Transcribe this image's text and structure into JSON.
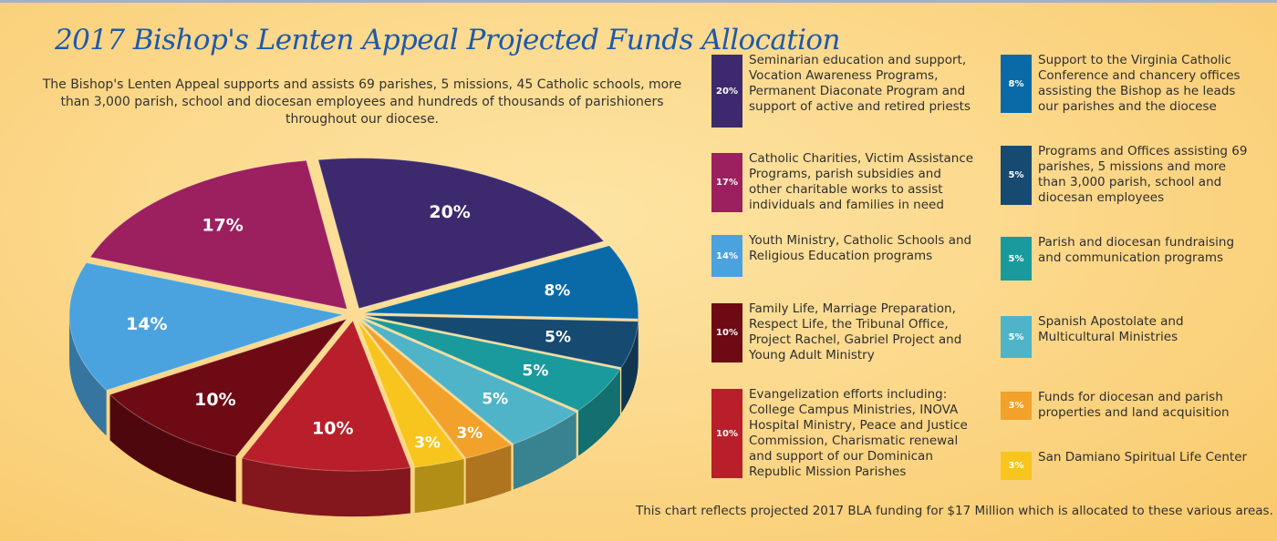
{
  "title": "2017 Bishop's Lenten Appeal Projected Funds Allocation",
  "intro": "The Bishop's Lenten Appeal supports and assists 69 parishes, 5 missions, 45 Catholic schools, more than 3,000 parish, school and diocesan employees and hundreds of thousands of parishioners throughout our diocese.",
  "footer": "This chart reflects projected 2017 BLA funding for $17 Million which is allocated to these various areas.",
  "chart_data": {
    "type": "pie",
    "title": "2017 Bishop's Lenten Appeal Projected Funds Allocation",
    "legend_position": "right",
    "slices": [
      {
        "label": "Seminarian education and support, Vocation Awareness Programs, Permanent Diaconate Program and support of active and retired priests",
        "value": 20,
        "display": "20%",
        "color": "#3d2a6e"
      },
      {
        "label": "Support to the Virginia Catholic Conference and chancery offices assisting the Bishop as he leads our parishes and the diocese",
        "value": 8,
        "display": "8%",
        "color": "#0a6aa8"
      },
      {
        "label": "Programs and Offices assisting 69 parishes, 5 missions and more than 3,000 parish, school and diocesan employees",
        "value": 5,
        "display": "5%",
        "color": "#164a70"
      },
      {
        "label": "Parish and diocesan fundraising and communication programs",
        "value": 5,
        "display": "5%",
        "color": "#1a9a9c"
      },
      {
        "label": "Spanish Apostolate and Multicultural Ministries",
        "value": 5,
        "display": "5%",
        "color": "#4fb4c8"
      },
      {
        "label": "Funds for diocesan and parish properties and land acquisition",
        "value": 3,
        "display": "3%",
        "color": "#f2a12a"
      },
      {
        "label": "San Damiano Spiritual Life Center",
        "value": 3,
        "display": "3%",
        "color": "#f7c51e"
      },
      {
        "label": "Evangelization efforts including: College Campus Ministries, INOVA Hospital Ministry, Peace and Justice Commission, Charismatic renewal and support of our Dominican Republic Mission Parishes",
        "value": 10,
        "display": "10%",
        "color": "#b81f2a"
      },
      {
        "label": "Family Life, Marriage Preparation, Respect Life, the Tribunal Office, Project Rachel, Gabriel Project and Young Adult Ministry",
        "value": 10,
        "display": "10%",
        "color": "#6e0a14"
      },
      {
        "label": "Youth Ministry, Catholic Schools and Religious Education programs",
        "value": 14,
        "display": "14%",
        "color": "#4aa3de"
      },
      {
        "label": "Catholic Charities, Victim Assistance Programs, parish subsidies and other charitable works to assist individuals and families in need",
        "value": 17,
        "display": "17%",
        "color": "#9c1f60"
      }
    ]
  },
  "legend": {
    "left": [
      {
        "pct": "20%",
        "text": "Seminarian education and support, Vocation Awareness Programs, Permanent Diaconate Program and support of active and retired priests",
        "color": "#3d2a6e"
      },
      {
        "pct": "17%",
        "text": "Catholic Charities, Victim Assistance Programs, parish subsidies and other charitable works to assist individuals and families in need",
        "color": "#9c1f60"
      },
      {
        "pct": "14%",
        "text": "Youth Ministry, Catholic Schools and Religious Education programs",
        "color": "#4aa3de"
      },
      {
        "pct": "10%",
        "text": "Family Life, Marriage Preparation, Respect Life, the Tribunal Office, Project Rachel, Gabriel Project and Young Adult Ministry",
        "color": "#6e0a14"
      },
      {
        "pct": "10%",
        "text": "Evangelization efforts including: College Campus Ministries, INOVA Hospital Ministry, Peace and Justice Commission, Charismatic renewal and support of our Dominican Republic Mission Parishes",
        "color": "#b81f2a"
      }
    ],
    "right": [
      {
        "pct": "8%",
        "text": "Support to the Virginia Catholic Conference and chancery offices assisting the Bishop as he leads our parishes and the diocese",
        "color": "#0a6aa8"
      },
      {
        "pct": "5%",
        "text": "Programs and Offices assisting 69 parishes, 5 missions and more than 3,000 parish, school and diocesan employees",
        "color": "#164a70"
      },
      {
        "pct": "5%",
        "text": "Parish and diocesan fundraising and communication programs",
        "color": "#1a9a9c"
      },
      {
        "pct": "5%",
        "text": "Spanish Apostolate and Multicultural Ministries",
        "color": "#4fb4c8"
      },
      {
        "pct": "3%",
        "text": "Funds for diocesan and parish properties and land acquisition",
        "color": "#f2a12a"
      },
      {
        "pct": "3%",
        "text": "San Damiano Spiritual Life Center",
        "color": "#f7c51e"
      }
    ]
  }
}
